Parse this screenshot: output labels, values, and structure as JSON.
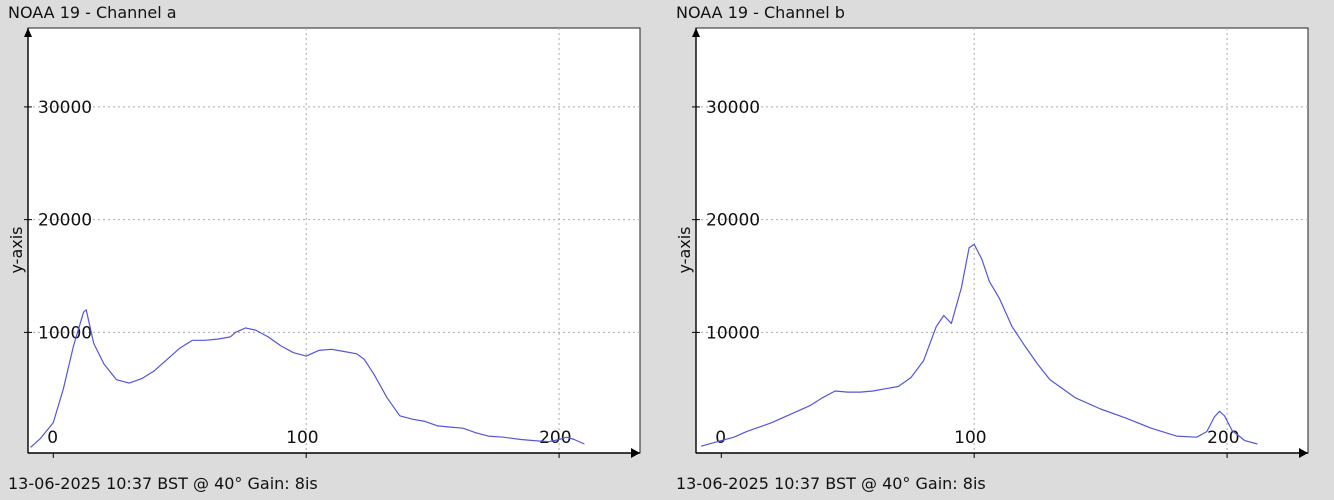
{
  "chart_data": [
    {
      "type": "line",
      "title": "NOAA 19 - Channel a",
      "ylabel": "y-axis",
      "footer": "13-06-2025 10:37 BST @ 40° Gain: 8is",
      "xlim": [
        -10,
        232
      ],
      "ylim": [
        -700,
        37000
      ],
      "x_ticks": [
        0,
        100,
        200
      ],
      "x_tick_labels": [
        "0",
        "100",
        "200"
      ],
      "y_ticks": [
        10000,
        20000,
        30000
      ],
      "y_tick_labels": [
        "10000",
        "20000",
        "30000"
      ],
      "grid": true,
      "series": [
        {
          "color": "#5555dd",
          "points": [
            [
              -9,
              -200
            ],
            [
              -5,
              600
            ],
            [
              0,
              2000
            ],
            [
              4,
              5000
            ],
            [
              8,
              8800
            ],
            [
              12,
              11800
            ],
            [
              13,
              12000
            ],
            [
              16,
              9000
            ],
            [
              20,
              7200
            ],
            [
              25,
              5800
            ],
            [
              30,
              5500
            ],
            [
              35,
              5900
            ],
            [
              40,
              6600
            ],
            [
              45,
              7600
            ],
            [
              50,
              8600
            ],
            [
              55,
              9300
            ],
            [
              60,
              9300
            ],
            [
              65,
              9400
            ],
            [
              70,
              9600
            ],
            [
              72,
              10000
            ],
            [
              76,
              10400
            ],
            [
              80,
              10200
            ],
            [
              85,
              9600
            ],
            [
              90,
              8800
            ],
            [
              95,
              8200
            ],
            [
              100,
              7900
            ],
            [
              105,
              8400
            ],
            [
              110,
              8500
            ],
            [
              115,
              8300
            ],
            [
              120,
              8100
            ],
            [
              123,
              7600
            ],
            [
              127,
              6200
            ],
            [
              132,
              4200
            ],
            [
              137,
              2600
            ],
            [
              142,
              2300
            ],
            [
              147,
              2100
            ],
            [
              152,
              1700
            ],
            [
              157,
              1600
            ],
            [
              162,
              1500
            ],
            [
              167,
              1100
            ],
            [
              172,
              800
            ],
            [
              178,
              700
            ],
            [
              185,
              500
            ],
            [
              190,
              400
            ],
            [
              196,
              300
            ],
            [
              200,
              500
            ],
            [
              203,
              700
            ],
            [
              206,
              500
            ],
            [
              210,
              100
            ]
          ]
        }
      ]
    },
    {
      "type": "line",
      "title": "NOAA 19 - Channel b",
      "ylabel": "y-axis",
      "footer": "13-06-2025 10:37 BST @ 40° Gain: 8is",
      "xlim": [
        -10,
        232
      ],
      "ylim": [
        -700,
        37000
      ],
      "x_ticks": [
        0,
        100,
        200
      ],
      "x_tick_labels": [
        "0",
        "100",
        "200"
      ],
      "y_ticks": [
        10000,
        20000,
        30000
      ],
      "y_tick_labels": [
        "10000",
        "20000",
        "30000"
      ],
      "grid": true,
      "series": [
        {
          "color": "#5555dd",
          "points": [
            [
              -8,
              -100
            ],
            [
              0,
              400
            ],
            [
              5,
              700
            ],
            [
              10,
              1200
            ],
            [
              20,
              2000
            ],
            [
              30,
              3000
            ],
            [
              35,
              3500
            ],
            [
              40,
              4200
            ],
            [
              45,
              4800
            ],
            [
              50,
              4700
            ],
            [
              55,
              4700
            ],
            [
              60,
              4800
            ],
            [
              65,
              5000
            ],
            [
              70,
              5200
            ],
            [
              75,
              6000
            ],
            [
              80,
              7500
            ],
            [
              85,
              10500
            ],
            [
              88,
              11500
            ],
            [
              91,
              10800
            ],
            [
              95,
              14000
            ],
            [
              98,
              17500
            ],
            [
              100,
              17800
            ],
            [
              103,
              16500
            ],
            [
              106,
              14500
            ],
            [
              110,
              13000
            ],
            [
              115,
              10500
            ],
            [
              120,
              8800
            ],
            [
              125,
              7200
            ],
            [
              130,
              5800
            ],
            [
              140,
              4200
            ],
            [
              150,
              3200
            ],
            [
              160,
              2400
            ],
            [
              170,
              1500
            ],
            [
              180,
              800
            ],
            [
              188,
              700
            ],
            [
              192,
              1200
            ],
            [
              195,
              2500
            ],
            [
              197,
              3000
            ],
            [
              199,
              2600
            ],
            [
              202,
              1300
            ],
            [
              207,
              400
            ],
            [
              212,
              100
            ]
          ]
        }
      ]
    }
  ]
}
